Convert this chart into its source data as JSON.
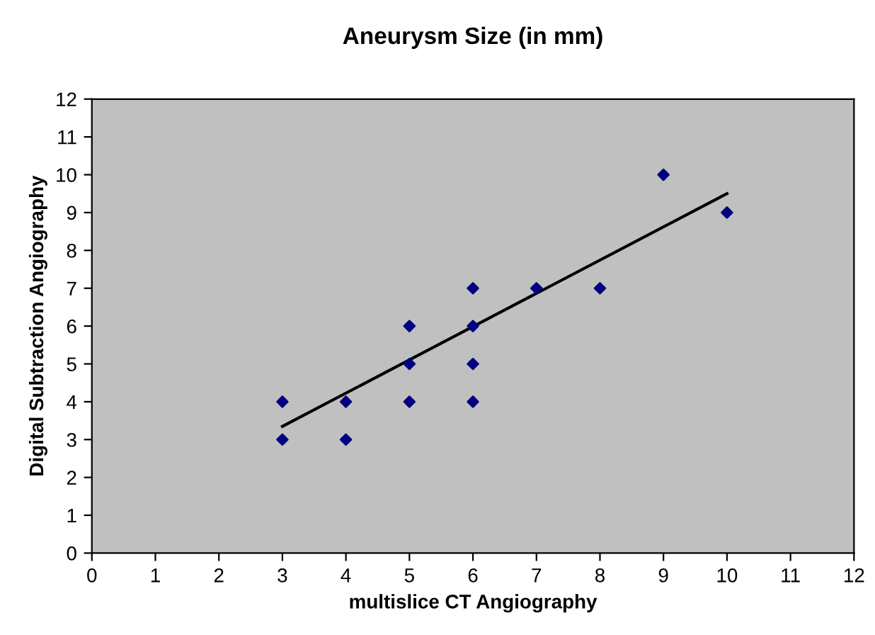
{
  "chart_data": {
    "type": "scatter",
    "title": "Aneurysm Size (in mm)",
    "xlabel": "multislice CT Angiography",
    "ylabel": "Digital Subtraction Angiography",
    "xlim": [
      0,
      12
    ],
    "ylim": [
      0,
      12
    ],
    "xticks": [
      0,
      1,
      2,
      3,
      4,
      5,
      6,
      7,
      8,
      9,
      10,
      11,
      12
    ],
    "yticks": [
      0,
      1,
      2,
      3,
      4,
      5,
      6,
      7,
      8,
      9,
      10,
      11,
      12
    ],
    "grid": false,
    "legend": false,
    "marker": "diamond",
    "series": [
      {
        "color": "#000080",
        "x": [
          3,
          3,
          4,
          4,
          5,
          5,
          5,
          6,
          6,
          6,
          6,
          7,
          8,
          9,
          10
        ],
        "values": [
          4,
          3,
          4,
          3,
          6,
          5,
          4,
          7,
          6,
          5,
          4,
          7,
          7,
          10,
          9
        ]
      },
      {
        "type": "line",
        "color": "#000000",
        "marker": "none",
        "line_style": "solid",
        "x": [
          3,
          10
        ],
        "values": [
          3.35,
          9.5
        ]
      }
    ]
  }
}
